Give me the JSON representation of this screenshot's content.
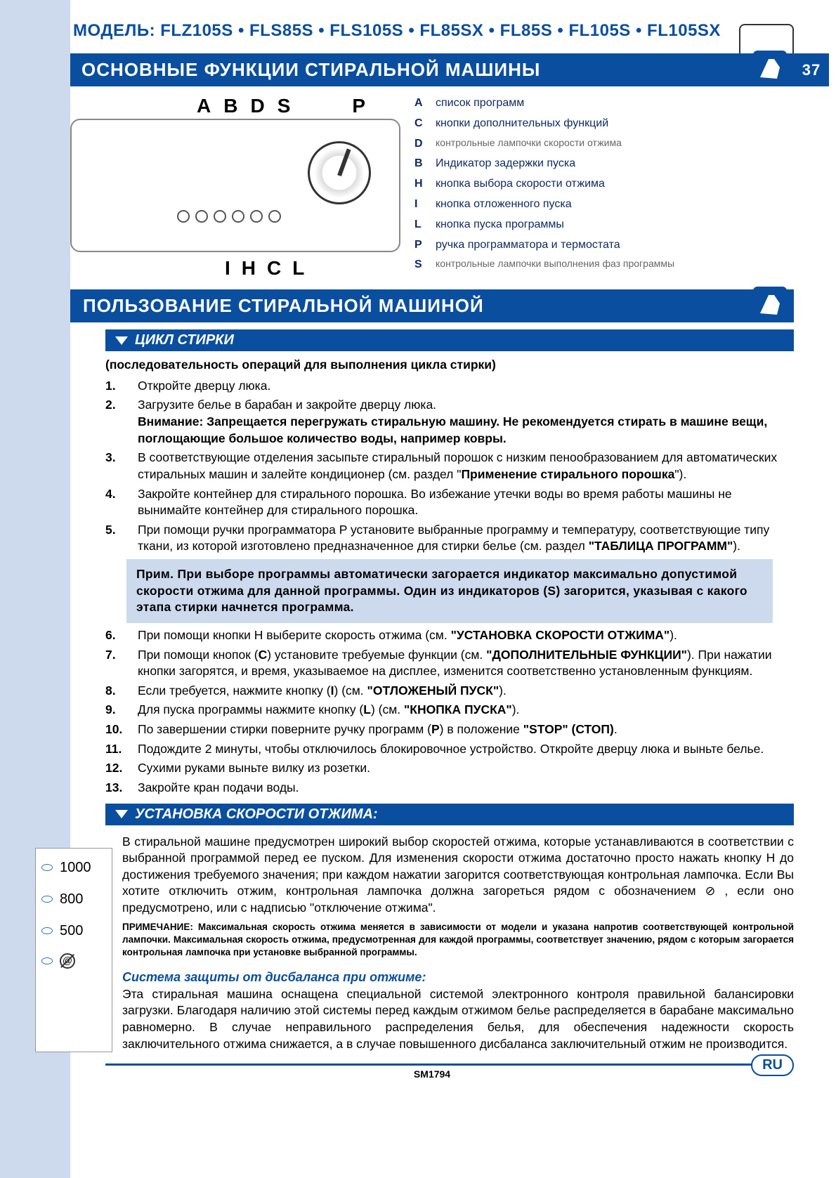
{
  "colors": {
    "brand": "#0a4ea0",
    "pale": "#cdd9ec",
    "text": "#000000",
    "legend": "#102a63"
  },
  "header": {
    "model_prefix": "МОДЕЛЬ:",
    "models": "FLZ105S • FLS85S • FLS105S • FL85SX • FL85S • FL105S • FL105SX",
    "title": "ОСНОВНЫЕ ФУНКЦИИ СТИРАЛЬНОЙ МАШИНЫ",
    "page_number": "37"
  },
  "panel": {
    "top_labels": [
      "A",
      "B",
      "D",
      "S",
      "P"
    ],
    "bottom_labels": [
      "I",
      "H",
      "C",
      "L"
    ]
  },
  "legend": [
    {
      "key": "A",
      "text": "список программ"
    },
    {
      "key": "C",
      "text": "кнопки дополнительных функций"
    },
    {
      "key": "D",
      "text": "контрольные лампочки скорости отжима",
      "gray": true
    },
    {
      "key": "B",
      "text": "Индикатор задержки пуска"
    },
    {
      "key": "H",
      "text": "кнопка выбора скорости отжима"
    },
    {
      "key": "I",
      "text": "кнопка отложенного пуска"
    },
    {
      "key": "L",
      "text": "кнопка пуска программы"
    },
    {
      "key": "P",
      "text": "ручка программатора и термостата"
    },
    {
      "key": "S",
      "text": "контрольные лампочки выполнения фаз программы",
      "gray": true
    }
  ],
  "section2_title": "ПОЛЬЗОВАНИЕ СТИРАЛЬНОЙ МАШИНОЙ",
  "cycle": {
    "subbar": "ЦИКЛ СТИРКИ",
    "seq_title": "(последовательность операций для выполнения цикла стирки)",
    "steps": [
      {
        "n": "1.",
        "html": "Откройте дверцу люка."
      },
      {
        "n": "2.",
        "html": "Загрузите белье в барабан и закройте дверцу люка.<br><b>Внимание: Запрещается перегружать стиральную машину. Не рекомендуется стирать в машине вещи, поглощающие большое количество воды, например ковры.</b>"
      },
      {
        "n": "3.",
        "html": "В соответствующие отделения засыпьте стиральный порошок с низким пенообразованием для автоматических стиральных машин и  залейте кондиционер (см. раздел \"<b>Применение стирального порошка</b>\")."
      },
      {
        "n": "4.",
        "html": "Закройте контейнер для стирального порошка. Во избежание утечки воды во время работы машины не вынимайте контейнер для стирального порошка."
      },
      {
        "n": "5.",
        "html": "При помощи ручки программатора P установите выбранные программу и температуру, соответствующие типу ткани, из которой изготовлено предназначенное для стирки белье (см. раздел <b>\"ТАБЛИЦА ПРОГРАММ\"</b>)."
      }
    ],
    "note": "Прим. При выборе программы автоматически загорается индикатор максимально допустимой скорости отжима для данной программы. Один из индикаторов (S) загорится, указывая с какого этапа стирки начнется программа.",
    "steps2": [
      {
        "n": "6.",
        "html": "При помощи кнопки H выберите скорость отжима (см. <b>\"УСТАНОВКА СКОРОСТИ ОТЖИМА\"</b>)."
      },
      {
        "n": "7.",
        "html": "При помощи кнопок (<b>C</b>) установите требуемые функции  (см. <b>\"ДОПОЛНИТЕЛЬНЫЕ ФУНКЦИИ\"</b>). При нажатии кнопки загорятся,  и время, указываемое на дисплее, изменится соответственно установленным функциям."
      },
      {
        "n": "8.",
        "html": "Если требуется, нажмите кнопку (<b>I</b>) (см. <b>\"ОТЛОЖЕНЫЙ ПУСК\"</b>)."
      },
      {
        "n": "9.",
        "html": "Для пуска программы нажмите кнопку (<b>L</b>) (см. <b>\"КНОПКА ПУСКА\"</b>)."
      },
      {
        "n": "10.",
        "html": "По завершении стирки поверните ручку программ (<b>P</b>) в положение <b>\"STOP\" (СТОП)</b>."
      },
      {
        "n": "11.",
        "html": "Подождите 2 минуты, чтобы отключилось блокировочное устройство. Откройте дверцу люка и выньте белье."
      },
      {
        "n": "12.",
        "html": "Сухими руками выньте вилку из розетки."
      },
      {
        "n": "13.",
        "html": "Закройте кран подачи воды."
      }
    ]
  },
  "spin": {
    "subbar": "УСТАНОВКА СКОРОСТИ ОТЖИМА:",
    "speeds": [
      "1000",
      "800",
      "500"
    ],
    "text": "В стиральной машине предусмотрен широкий выбор скоростей отжима, которые устанавливаются в соответствии с выбранной программой перед ее пуском. Для изменения скорости отжима достаточно просто нажать кнопку H до достижения требуемого значения; при каждом нажатии загорится соответствующая контрольная лампочка. Если Вы хотите отключить отжим, контрольная лампочка должна загореться рядом с обозначением ⊘ , если оно предусмотрено, или с надписью \"отключение отжима\".",
    "small_note": "ПРИМЕЧАНИЕ: Максимальная скорость отжима меняется в зависимости от модели и указана напротив соответствующей контрольной лампочки. Максимальная скорость отжима, предусмотренная для каждой программы, соответствует значению, рядом с которым загорается контрольная лампочка при установке выбранной программы.",
    "balance_title": "Система защиты от дисбаланса при отжиме:",
    "balance_text": "Эта стиральная машина оснащена специальной системой электронного контроля  правильной балансировки загрузки. Благодаря наличию этой системы перед каждым отжимом белье распределяется в барабане максимально равномерно. В случае неправильного распределения белья, для обеспечения надежности скорость заключительного отжима снижается, а в случае повышенного дисбаланса заключительный отжим не производится."
  },
  "footer": {
    "lang_badge": "RU",
    "code": "SM1794"
  }
}
